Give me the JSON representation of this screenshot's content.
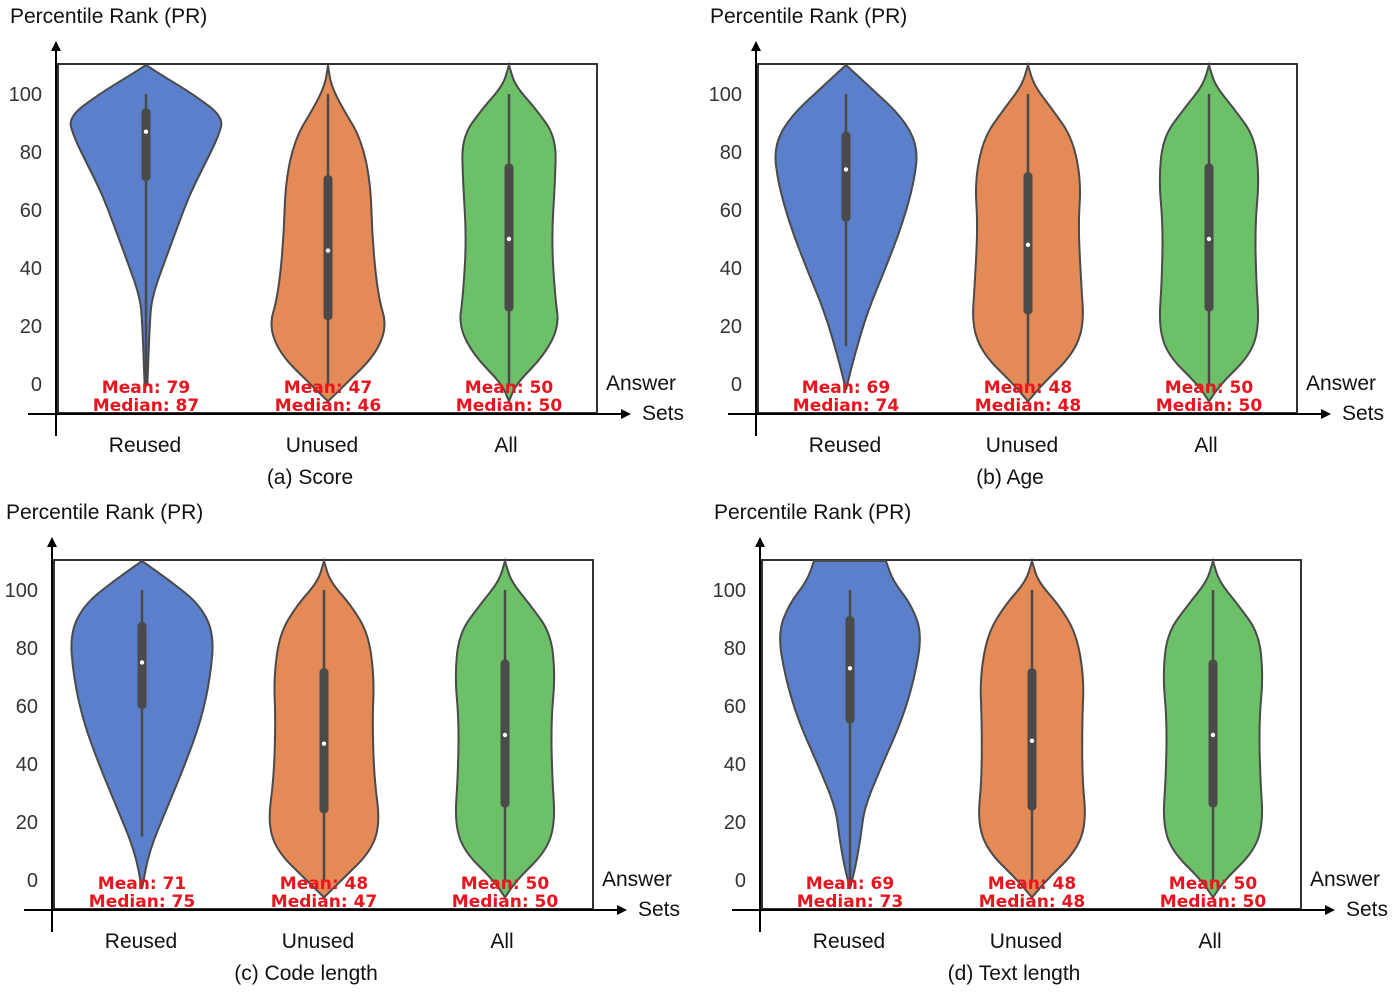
{
  "figure": {
    "y_axis_label": "Percentile Rank (PR)",
    "x_axis_label_line1": "Answer",
    "x_axis_label_line2": "Sets",
    "mean_prefix": "Mean: ",
    "median_prefix": "Median: ",
    "yticks": [
      "0",
      "20",
      "40",
      "60",
      "80",
      "100"
    ]
  },
  "colors": {
    "reused": "#5b7fcb",
    "unused": "#e38a57",
    "all": "#6cc067",
    "stat_text": "#e8141e",
    "violin_edge": "#4a4a4a",
    "box": "#4a4a4a"
  },
  "chart_data": [
    {
      "type": "violin",
      "title": "(a) Score",
      "ylabel": "Percentile Rank (PR)",
      "xlabel": "Answer Sets",
      "ylim": [
        -10,
        110
      ],
      "yticks": [
        0,
        20,
        40,
        60,
        80,
        100
      ],
      "categories": [
        "Reused",
        "Unused",
        "All"
      ],
      "series": [
        {
          "name": "Reused",
          "mean": 79,
          "median": 87,
          "q1": 70,
          "q3": 95,
          "wmin": 0,
          "wmax": 100,
          "density": [
            [
              0,
              0.02
            ],
            [
              20,
              0.05
            ],
            [
              30,
              0.08
            ],
            [
              45,
              0.3
            ],
            [
              55,
              0.45
            ],
            [
              65,
              0.6
            ],
            [
              75,
              0.8
            ],
            [
              85,
              1.0
            ],
            [
              92,
              1.08
            ],
            [
              100,
              0.65
            ],
            [
              106,
              0.25
            ],
            [
              110,
              0
            ]
          ]
        },
        {
          "name": "Unused",
          "mean": 47,
          "median": 46,
          "q1": 22,
          "q3": 72,
          "wmin": 0,
          "wmax": 100,
          "density": [
            [
              -6,
              0
            ],
            [
              0,
              0.3
            ],
            [
              10,
              0.8
            ],
            [
              20,
              1.0
            ],
            [
              30,
              0.85
            ],
            [
              50,
              0.75
            ],
            [
              70,
              0.72
            ],
            [
              85,
              0.55
            ],
            [
              95,
              0.25
            ],
            [
              103,
              0.05
            ],
            [
              110,
              0
            ]
          ]
        },
        {
          "name": "All",
          "mean": 50,
          "median": 50,
          "q1": 25,
          "q3": 76,
          "wmin": 0,
          "wmax": 100,
          "density": [
            [
              -6,
              0
            ],
            [
              0,
              0.12
            ],
            [
              10,
              0.6
            ],
            [
              20,
              0.85
            ],
            [
              30,
              0.78
            ],
            [
              50,
              0.72
            ],
            [
              70,
              0.78
            ],
            [
              85,
              0.8
            ],
            [
              95,
              0.45
            ],
            [
              103,
              0.1
            ],
            [
              110,
              0
            ]
          ]
        }
      ]
    },
    {
      "type": "violin",
      "title": "(b) Age",
      "ylabel": "Percentile Rank (PR)",
      "xlabel": "Answer Sets",
      "ylim": [
        -10,
        110
      ],
      "yticks": [
        0,
        20,
        40,
        60,
        80,
        100
      ],
      "categories": [
        "Reused",
        "Unused",
        "All"
      ],
      "series": [
        {
          "name": "Reused",
          "mean": 69,
          "median": 74,
          "q1": 56,
          "q3": 87,
          "wmin": 13,
          "wmax": 100,
          "density": [
            [
              -2,
              0
            ],
            [
              10,
              0.12
            ],
            [
              25,
              0.3
            ],
            [
              40,
              0.55
            ],
            [
              55,
              0.78
            ],
            [
              70,
              0.95
            ],
            [
              82,
              1.0
            ],
            [
              92,
              0.78
            ],
            [
              102,
              0.35
            ],
            [
              110,
              0
            ]
          ]
        },
        {
          "name": "Unused",
          "mean": 48,
          "median": 48,
          "q1": 24,
          "q3": 73,
          "wmin": 0,
          "wmax": 100,
          "density": [
            [
              -6,
              0
            ],
            [
              0,
              0.25
            ],
            [
              10,
              0.75
            ],
            [
              20,
              0.95
            ],
            [
              35,
              0.9
            ],
            [
              55,
              0.85
            ],
            [
              70,
              0.9
            ],
            [
              85,
              0.75
            ],
            [
              95,
              0.4
            ],
            [
              103,
              0.1
            ],
            [
              110,
              0
            ]
          ]
        },
        {
          "name": "All",
          "mean": 50,
          "median": 50,
          "q1": 25,
          "q3": 76,
          "wmin": 0,
          "wmax": 100,
          "density": [
            [
              -6,
              0
            ],
            [
              0,
              0.2
            ],
            [
              10,
              0.7
            ],
            [
              20,
              0.85
            ],
            [
              35,
              0.8
            ],
            [
              55,
              0.78
            ],
            [
              70,
              0.85
            ],
            [
              85,
              0.78
            ],
            [
              95,
              0.42
            ],
            [
              103,
              0.1
            ],
            [
              110,
              0
            ]
          ]
        }
      ]
    },
    {
      "type": "violin",
      "title": "(c) Code length",
      "ylabel": "Percentile Rank (PR)",
      "xlabel": "Answer Sets",
      "ylim": [
        -10,
        110
      ],
      "yticks": [
        0,
        20,
        40,
        60,
        80,
        100
      ],
      "categories": [
        "Reused",
        "Unused",
        "All"
      ],
      "series": [
        {
          "name": "Reused",
          "mean": 71,
          "median": 75,
          "q1": 59,
          "q3": 89,
          "wmin": 15,
          "wmax": 100,
          "density": [
            [
              -3,
              0
            ],
            [
              10,
              0.1
            ],
            [
              25,
              0.35
            ],
            [
              40,
              0.6
            ],
            [
              55,
              0.82
            ],
            [
              70,
              0.95
            ],
            [
              85,
              1.0
            ],
            [
              95,
              0.8
            ],
            [
              103,
              0.4
            ],
            [
              110,
              0
            ]
          ]
        },
        {
          "name": "Unused",
          "mean": 48,
          "median": 47,
          "q1": 23,
          "q3": 73,
          "wmin": 0,
          "wmax": 100,
          "density": [
            [
              -6,
              0
            ],
            [
              0,
              0.3
            ],
            [
              10,
              0.8
            ],
            [
              20,
              0.95
            ],
            [
              35,
              0.85
            ],
            [
              55,
              0.82
            ],
            [
              70,
              0.85
            ],
            [
              85,
              0.75
            ],
            [
              95,
              0.45
            ],
            [
              103,
              0.1
            ],
            [
              110,
              0
            ]
          ]
        },
        {
          "name": "All",
          "mean": 50,
          "median": 50,
          "q1": 25,
          "q3": 76,
          "wmin": 0,
          "wmax": 100,
          "density": [
            [
              -6,
              0
            ],
            [
              0,
              0.2
            ],
            [
              10,
              0.7
            ],
            [
              20,
              0.85
            ],
            [
              35,
              0.8
            ],
            [
              55,
              0.78
            ],
            [
              70,
              0.85
            ],
            [
              85,
              0.78
            ],
            [
              95,
              0.42
            ],
            [
              103,
              0.1
            ],
            [
              110,
              0
            ]
          ]
        }
      ]
    },
    {
      "type": "violin",
      "title": "(d) Text length",
      "ylabel": "Percentile Rank (PR)",
      "xlabel": "Answer Sets",
      "ylim": [
        -10,
        110
      ],
      "yticks": [
        0,
        20,
        40,
        60,
        80,
        100
      ],
      "categories": [
        "Reused",
        "Unused",
        "All"
      ],
      "series": [
        {
          "name": "Reused",
          "mean": 69,
          "median": 73,
          "q1": 54,
          "q3": 91,
          "wmin": 0,
          "wmax": 100,
          "density": [
            [
              -3,
              0
            ],
            [
              5,
              0.08
            ],
            [
              15,
              0.15
            ],
            [
              25,
              0.2
            ],
            [
              40,
              0.45
            ],
            [
              55,
              0.72
            ],
            [
              70,
              0.9
            ],
            [
              85,
              1.0
            ],
            [
              95,
              0.85
            ],
            [
              103,
              0.6
            ],
            [
              110,
              0.5
            ]
          ]
        },
        {
          "name": "Unused",
          "mean": 48,
          "median": 48,
          "q1": 24,
          "q3": 73,
          "wmin": 0,
          "wmax": 100,
          "density": [
            [
              -6,
              0
            ],
            [
              0,
              0.25
            ],
            [
              10,
              0.75
            ],
            [
              20,
              0.92
            ],
            [
              35,
              0.85
            ],
            [
              55,
              0.85
            ],
            [
              70,
              0.88
            ],
            [
              85,
              0.75
            ],
            [
              95,
              0.45
            ],
            [
              103,
              0.1
            ],
            [
              110,
              0
            ]
          ]
        },
        {
          "name": "All",
          "mean": 50,
          "median": 50,
          "q1": 25,
          "q3": 76,
          "wmin": 0,
          "wmax": 100,
          "density": [
            [
              -6,
              0
            ],
            [
              0,
              0.2
            ],
            [
              10,
              0.7
            ],
            [
              20,
              0.85
            ],
            [
              35,
              0.8
            ],
            [
              55,
              0.78
            ],
            [
              70,
              0.85
            ],
            [
              85,
              0.78
            ],
            [
              95,
              0.42
            ],
            [
              103,
              0.1
            ],
            [
              110,
              0
            ]
          ]
        }
      ]
    }
  ]
}
